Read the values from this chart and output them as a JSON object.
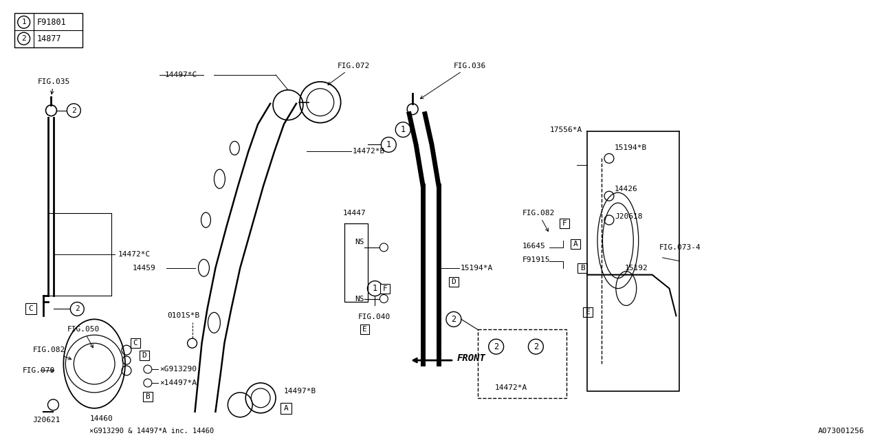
{
  "bg_color": "#ffffff",
  "line_color": "#000000",
  "fig_id": "A073001256",
  "legend": [
    {
      "num": "1",
      "code": "F91801"
    },
    {
      "num": "2",
      "code": "14877"
    }
  ]
}
